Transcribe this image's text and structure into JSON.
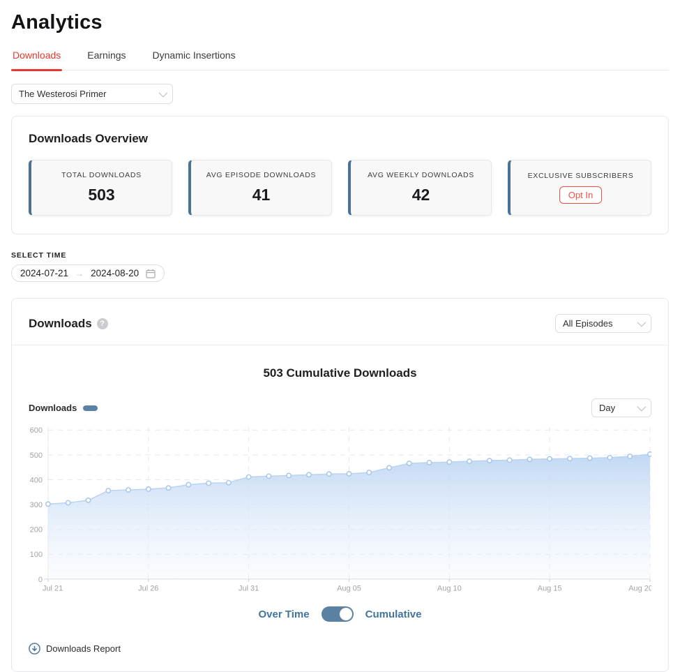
{
  "page": {
    "title": "Analytics"
  },
  "tabs": [
    {
      "label": "Downloads",
      "active": true
    },
    {
      "label": "Earnings",
      "active": false
    },
    {
      "label": "Dynamic Insertions",
      "active": false
    }
  ],
  "show_select": {
    "value": "The Westerosi Primer"
  },
  "overview": {
    "title": "Downloads Overview",
    "stats": [
      {
        "label": "TOTAL DOWNLOADS",
        "value": "503"
      },
      {
        "label": "AVG EPISODE DOWNLOADS",
        "value": "41"
      },
      {
        "label": "AVG WEEKLY DOWNLOADS",
        "value": "42"
      },
      {
        "label": "EXCLUSIVE SUBSCRIBERS",
        "button": "Opt In"
      }
    ]
  },
  "time_select": {
    "label": "SELECT TIME",
    "start": "2024-07-21",
    "end": "2024-08-20"
  },
  "downloads_section": {
    "title": "Downloads",
    "episodes_select": "All Episodes",
    "interval_select": "Day",
    "legend": "Downloads",
    "toggle": {
      "left": "Over Time",
      "right": "Cumulative",
      "state": "right"
    },
    "report_link": "Downloads Report"
  },
  "chart_data": {
    "type": "area",
    "title": "503 Cumulative Downloads",
    "series_name": "Downloads",
    "x_tick_labels": [
      "Jul 21",
      "Jul 26",
      "Jul 31",
      "Aug 05",
      "Aug 10",
      "Aug 15",
      "Aug 20"
    ],
    "x_tick_indices": [
      0,
      5,
      10,
      15,
      20,
      25,
      30
    ],
    "values": [
      302,
      307,
      317,
      356,
      359,
      362,
      367,
      380,
      386,
      388,
      411,
      414,
      417,
      420,
      423,
      424,
      429,
      448,
      466,
      469,
      471,
      474,
      477,
      479,
      482,
      484,
      485,
      487,
      489,
      494,
      503
    ],
    "ylim": [
      0,
      600
    ],
    "y_ticks": [
      0,
      100,
      200,
      300,
      400,
      500,
      600
    ],
    "grid": true,
    "legend_position": "top-left"
  },
  "colors": {
    "accent_red": "#e6382e",
    "steel_blue": "#4a7296",
    "toggle_blue": "#5a80a2",
    "label_blue": "#40749e",
    "area_fill_top": "#bed6f3",
    "area_fill_bottom": "#f1f6fd",
    "line": "#b9d3f0",
    "marker_stroke": "#a6c6ec",
    "grid": "#e7e7ea",
    "axis_text": "#a3a3a8"
  }
}
